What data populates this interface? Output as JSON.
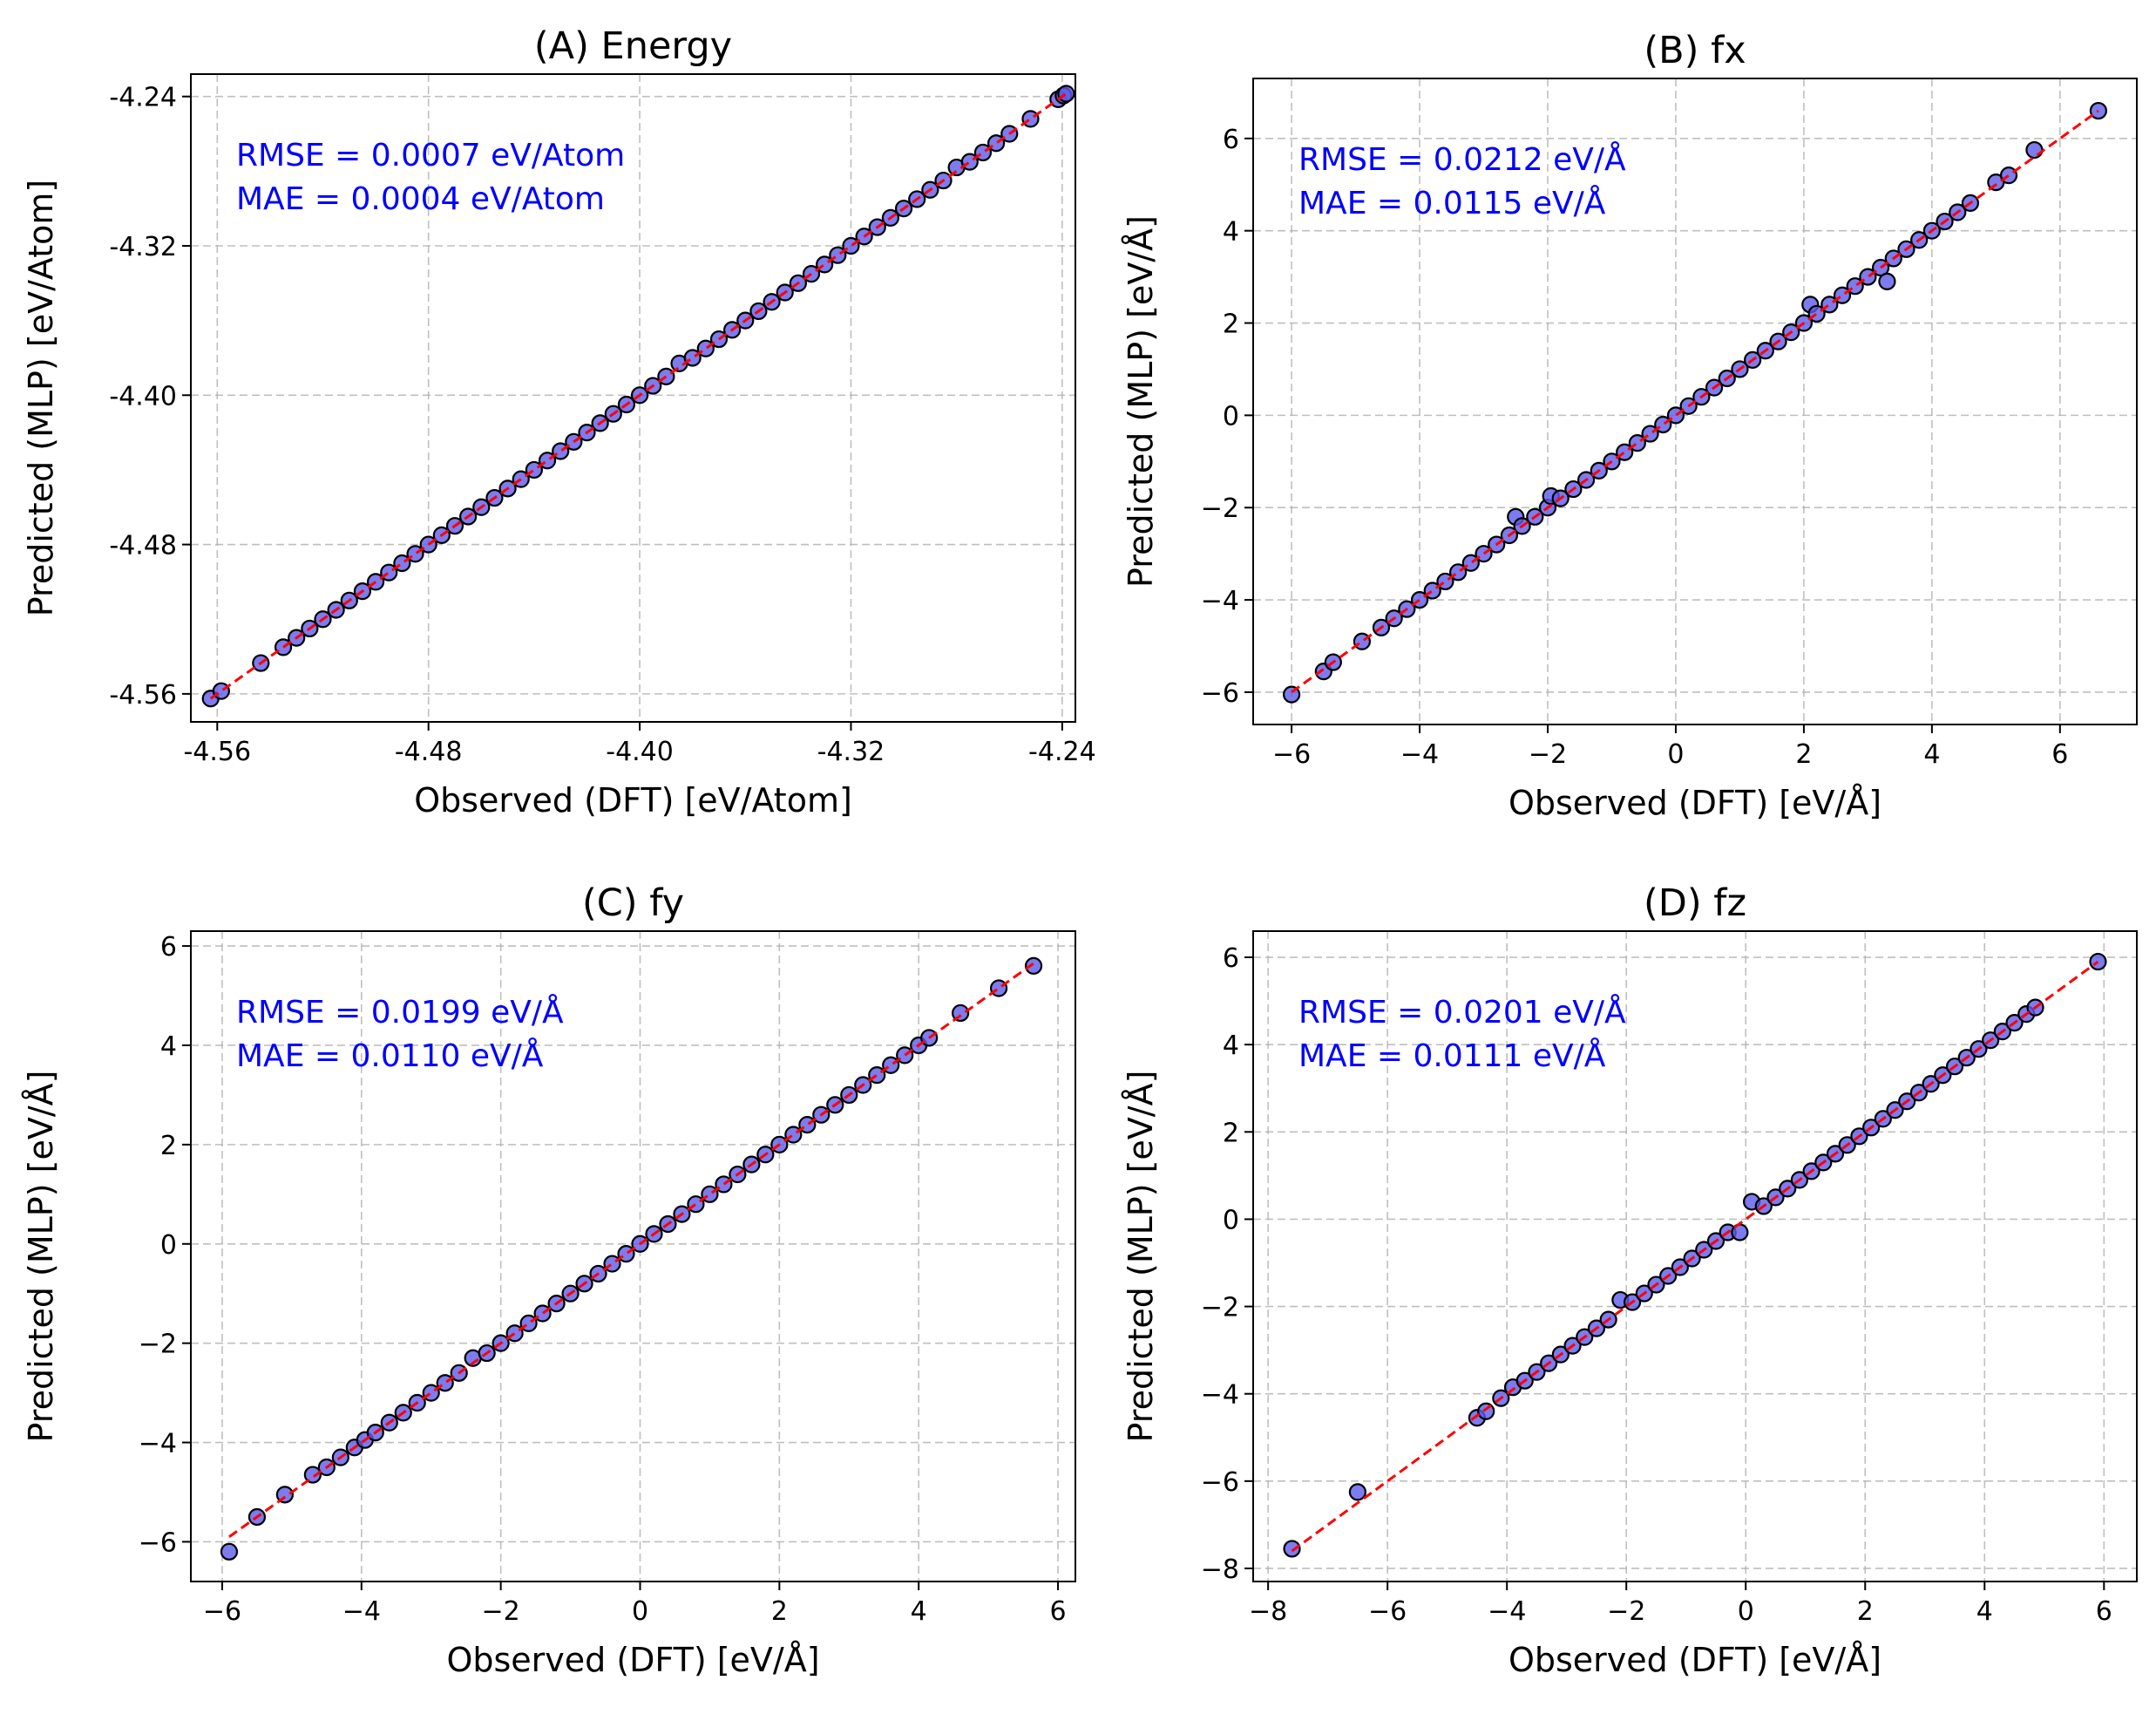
{
  "figure": {
    "colors": {
      "point_fill": "#5b5bea",
      "point_edge": "#000000",
      "fit_line": "#ff0000",
      "annotation": "#0000ff",
      "grid": "#b0b0b0"
    }
  },
  "chart_data": [
    {
      "type": "scatter",
      "title": "(A) Energy",
      "xlabel": "Observed (DFT) [eV/Atom]",
      "ylabel": "Predicted (MLP) [eV/Atom]",
      "xlim": [
        -4.57,
        -4.235
      ],
      "ylim": [
        -4.575,
        -4.228
      ],
      "xticks": [
        -4.56,
        -4.48,
        -4.4,
        -4.32,
        -4.24
      ],
      "yticks": [
        -4.56,
        -4.48,
        -4.4,
        -4.32,
        -4.24
      ],
      "xtick_labels": [
        "-4.56",
        "-4.48",
        "-4.40",
        "-4.32",
        "-4.24"
      ],
      "ytick_labels": [
        "-4.56",
        "-4.48",
        "-4.40",
        "-4.32",
        "-4.24"
      ],
      "grid": true,
      "reference_line": "y = x",
      "annotations": [
        "RMSE = 0.0007 eV/Atom",
        "MAE = 0.0004 eV/Atom"
      ],
      "series": [
        {
          "x": [
            -4.5625,
            -4.5585,
            -4.5435,
            -4.535,
            -4.53,
            -4.525,
            -4.52,
            -4.515,
            -4.51,
            -4.505,
            -4.5,
            -4.495,
            -4.49,
            -4.485,
            -4.48,
            -4.475,
            -4.47,
            -4.465,
            -4.46,
            -4.455,
            -4.45,
            -4.445,
            -4.44,
            -4.435,
            -4.43,
            -4.425,
            -4.42,
            -4.415,
            -4.41,
            -4.405,
            -4.4,
            -4.395,
            -4.39,
            -4.385,
            -4.38,
            -4.375,
            -4.37,
            -4.365,
            -4.36,
            -4.355,
            -4.35,
            -4.345,
            -4.34,
            -4.335,
            -4.33,
            -4.325,
            -4.32,
            -4.315,
            -4.31,
            -4.305,
            -4.3,
            -4.295,
            -4.29,
            -4.285,
            -4.28,
            -4.275,
            -4.27,
            -4.265,
            -4.26,
            -4.252,
            -4.2415,
            -4.2395,
            -4.2385
          ],
          "y": [
            -4.5625,
            -4.5585,
            -4.5435,
            -4.535,
            -4.53,
            -4.525,
            -4.52,
            -4.515,
            -4.51,
            -4.505,
            -4.5,
            -4.495,
            -4.49,
            -4.485,
            -4.48,
            -4.475,
            -4.47,
            -4.465,
            -4.46,
            -4.455,
            -4.45,
            -4.445,
            -4.44,
            -4.435,
            -4.43,
            -4.425,
            -4.42,
            -4.415,
            -4.41,
            -4.405,
            -4.4,
            -4.395,
            -4.39,
            -4.383,
            -4.38,
            -4.375,
            -4.37,
            -4.365,
            -4.36,
            -4.355,
            -4.35,
            -4.345,
            -4.34,
            -4.335,
            -4.33,
            -4.325,
            -4.32,
            -4.315,
            -4.31,
            -4.305,
            -4.3,
            -4.295,
            -4.29,
            -4.285,
            -4.278,
            -4.275,
            -4.27,
            -4.265,
            -4.26,
            -4.252,
            -4.2415,
            -4.2395,
            -4.2385
          ]
        }
      ]
    },
    {
      "type": "scatter",
      "title": "(B) fx",
      "xlabel": "Observed (DFT) [eV/Å]",
      "ylabel": "Predicted (MLP) [eV/Å]",
      "xlim": [
        -6.6,
        7.2
      ],
      "ylim": [
        -6.7,
        7.3
      ],
      "xticks": [
        -6,
        -4,
        -2,
        0,
        2,
        4,
        6
      ],
      "yticks": [
        -6,
        -4,
        -2,
        0,
        2,
        4,
        6
      ],
      "xtick_labels": [
        "−6",
        "−4",
        "−2",
        "0",
        "2",
        "4",
        "6"
      ],
      "ytick_labels": [
        "−6",
        "−4",
        "−2",
        "0",
        "2",
        "4",
        "6"
      ],
      "grid": true,
      "reference_line": "y = x",
      "annotations": [
        "RMSE = 0.0212 eV/Å",
        "MAE = 0.0115 eV/Å"
      ],
      "series": [
        {
          "x": [
            -6.0,
            -5.5,
            -5.35,
            -4.9,
            -4.6,
            -4.4,
            -4.2,
            -4.0,
            -3.8,
            -3.6,
            -3.4,
            -3.2,
            -3.0,
            -2.8,
            -2.6,
            -2.5,
            -2.4,
            -2.2,
            -2.0,
            -1.95,
            -1.8,
            -1.6,
            -1.4,
            -1.2,
            -1.0,
            -0.8,
            -0.6,
            -0.4,
            -0.2,
            0.0,
            0.2,
            0.4,
            0.6,
            0.8,
            1.0,
            1.2,
            1.4,
            1.6,
            1.8,
            2.0,
            2.1,
            2.2,
            2.4,
            2.6,
            2.8,
            3.0,
            3.2,
            3.3,
            3.4,
            3.6,
            3.8,
            4.0,
            4.2,
            4.4,
            4.6,
            5.0,
            5.2,
            5.6,
            6.6
          ],
          "y": [
            -6.05,
            -5.55,
            -5.35,
            -4.9,
            -4.6,
            -4.4,
            -4.2,
            -4.0,
            -3.8,
            -3.6,
            -3.4,
            -3.2,
            -3.0,
            -2.8,
            -2.6,
            -2.2,
            -2.4,
            -2.2,
            -2.0,
            -1.75,
            -1.8,
            -1.6,
            -1.4,
            -1.2,
            -1.0,
            -0.8,
            -0.6,
            -0.4,
            -0.2,
            0.0,
            0.2,
            0.4,
            0.6,
            0.8,
            1.0,
            1.2,
            1.4,
            1.6,
            1.8,
            2.0,
            2.4,
            2.2,
            2.4,
            2.6,
            2.8,
            3.0,
            3.2,
            2.9,
            3.4,
            3.6,
            3.8,
            4.0,
            4.2,
            4.4,
            4.6,
            5.05,
            5.2,
            5.75,
            6.6
          ]
        }
      ]
    },
    {
      "type": "scatter",
      "title": "(C) fy",
      "xlabel": "Observed (DFT) [eV/Å]",
      "ylabel": "Predicted (MLP) [eV/Å]",
      "xlim": [
        -6.45,
        6.25
      ],
      "ylim": [
        -6.8,
        6.3
      ],
      "xticks": [
        -6,
        -4,
        -2,
        0,
        2,
        4,
        6
      ],
      "yticks": [
        -6,
        -4,
        -2,
        0,
        2,
        4,
        6
      ],
      "xtick_labels": [
        "−6",
        "−4",
        "−2",
        "0",
        "2",
        "4",
        "6"
      ],
      "ytick_labels": [
        "−6",
        "−4",
        "−2",
        "0",
        "2",
        "4",
        "6"
      ],
      "grid": true,
      "reference_line": "y = x",
      "annotations": [
        "RMSE = 0.0199 eV/Å",
        "MAE = 0.0110 eV/Å"
      ],
      "series": [
        {
          "x": [
            -5.9,
            -5.5,
            -5.1,
            -4.7,
            -4.5,
            -4.3,
            -4.1,
            -3.95,
            -3.8,
            -3.6,
            -3.4,
            -3.2,
            -3.0,
            -2.8,
            -2.6,
            -2.4,
            -2.2,
            -2.0,
            -1.8,
            -1.6,
            -1.4,
            -1.2,
            -1.0,
            -0.8,
            -0.6,
            -0.4,
            -0.2,
            0.0,
            0.2,
            0.4,
            0.6,
            0.8,
            1.0,
            1.2,
            1.4,
            1.6,
            1.8,
            2.0,
            2.2,
            2.4,
            2.6,
            2.8,
            3.0,
            3.2,
            3.4,
            3.6,
            3.8,
            4.0,
            4.15,
            4.6,
            5.15,
            5.65
          ],
          "y": [
            -6.2,
            -5.5,
            -5.05,
            -4.65,
            -4.5,
            -4.3,
            -4.1,
            -3.95,
            -3.8,
            -3.6,
            -3.4,
            -3.2,
            -3.0,
            -2.8,
            -2.6,
            -2.3,
            -2.2,
            -2.0,
            -1.8,
            -1.6,
            -1.4,
            -1.2,
            -1.0,
            -0.8,
            -0.6,
            -0.4,
            -0.2,
            0.0,
            0.2,
            0.4,
            0.6,
            0.8,
            1.0,
            1.2,
            1.4,
            1.6,
            1.8,
            2.0,
            2.2,
            2.4,
            2.6,
            2.8,
            3.0,
            3.2,
            3.4,
            3.6,
            3.8,
            4.0,
            4.15,
            4.65,
            5.15,
            5.6
          ]
        }
      ]
    },
    {
      "type": "scatter",
      "title": "(D) fz",
      "xlabel": "Observed (DFT) [eV/Å]",
      "ylabel": "Predicted (MLP) [eV/Å]",
      "xlim": [
        -8.25,
        6.55
      ],
      "ylim": [
        -8.3,
        6.6
      ],
      "xticks": [
        -8,
        -6,
        -4,
        -2,
        0,
        2,
        4,
        6
      ],
      "yticks": [
        -8,
        -6,
        -4,
        -2,
        0,
        2,
        4,
        6
      ],
      "xtick_labels": [
        "−8",
        "−6",
        "−4",
        "−2",
        "0",
        "2",
        "4",
        "6"
      ],
      "ytick_labels": [
        "−8",
        "−6",
        "−4",
        "−2",
        "0",
        "2",
        "4",
        "6"
      ],
      "grid": true,
      "reference_line": "y = x",
      "annotations": [
        "RMSE = 0.0201 eV/Å",
        "MAE = 0.0111 eV/Å"
      ],
      "series": [
        {
          "x": [
            -7.6,
            -6.5,
            -4.5,
            -4.35,
            -4.1,
            -3.9,
            -3.7,
            -3.5,
            -3.3,
            -3.1,
            -2.9,
            -2.7,
            -2.5,
            -2.3,
            -2.1,
            -1.9,
            -1.7,
            -1.5,
            -1.3,
            -1.1,
            -0.9,
            -0.7,
            -0.5,
            -0.3,
            -0.1,
            0.1,
            0.3,
            0.5,
            0.7,
            0.9,
            1.1,
            1.3,
            1.5,
            1.7,
            1.9,
            2.1,
            2.3,
            2.5,
            2.7,
            2.9,
            3.1,
            3.3,
            3.5,
            3.7,
            3.9,
            4.1,
            4.3,
            4.5,
            4.7,
            4.85,
            5.9
          ],
          "y": [
            -7.55,
            -6.25,
            -4.55,
            -4.4,
            -4.1,
            -3.85,
            -3.7,
            -3.5,
            -3.3,
            -3.1,
            -2.9,
            -2.7,
            -2.5,
            -2.3,
            -1.85,
            -1.9,
            -1.7,
            -1.5,
            -1.3,
            -1.1,
            -0.9,
            -0.7,
            -0.5,
            -0.3,
            -0.3,
            0.4,
            0.3,
            0.5,
            0.7,
            0.9,
            1.1,
            1.3,
            1.5,
            1.7,
            1.9,
            2.1,
            2.3,
            2.5,
            2.7,
            2.9,
            3.1,
            3.3,
            3.5,
            3.7,
            3.9,
            4.1,
            4.3,
            4.5,
            4.7,
            4.85,
            5.9
          ]
        }
      ]
    }
  ]
}
